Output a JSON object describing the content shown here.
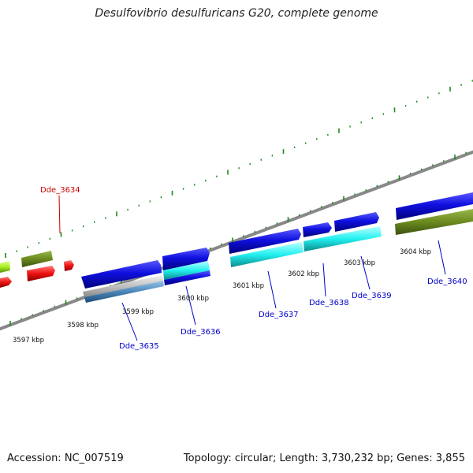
{
  "title": "Desulfovibrio desulfuricans G20, complete genome",
  "footer": {
    "accession": "Accession: NC_007519",
    "topology": "Topology: circular; Length: 3,730,232 bp; Genes: 3,855"
  },
  "colors": {
    "backbone": "#8a8a8a",
    "tick": "#1a8a1a",
    "gene_label": "#0000cc",
    "highlight_label": "#cc0000",
    "blue": "#1010e0",
    "cyan": "#22f0f0",
    "olive": "#6b8a1e",
    "red": "#ee1111",
    "lime": "#a8f020",
    "steel": "#4a86b8",
    "gray": "#c0c0c0"
  },
  "scale_labels": [
    "3597 kbp",
    "3598 kbp",
    "3599 kbp",
    "3600 kbp",
    "3601 kbp",
    "3602 kbp",
    "3603 kbp",
    "3604 kbp"
  ],
  "gene_labels": [
    {
      "name": "Dde_3634",
      "highlight": true
    },
    {
      "name": "Dde_3635",
      "highlight": false
    },
    {
      "name": "Dde_3636",
      "highlight": false
    },
    {
      "name": "Dde_3637",
      "highlight": false
    },
    {
      "name": "Dde_3638",
      "highlight": false
    },
    {
      "name": "Dde_3639",
      "highlight": false
    },
    {
      "name": "Dde_3640",
      "highlight": false
    }
  ]
}
